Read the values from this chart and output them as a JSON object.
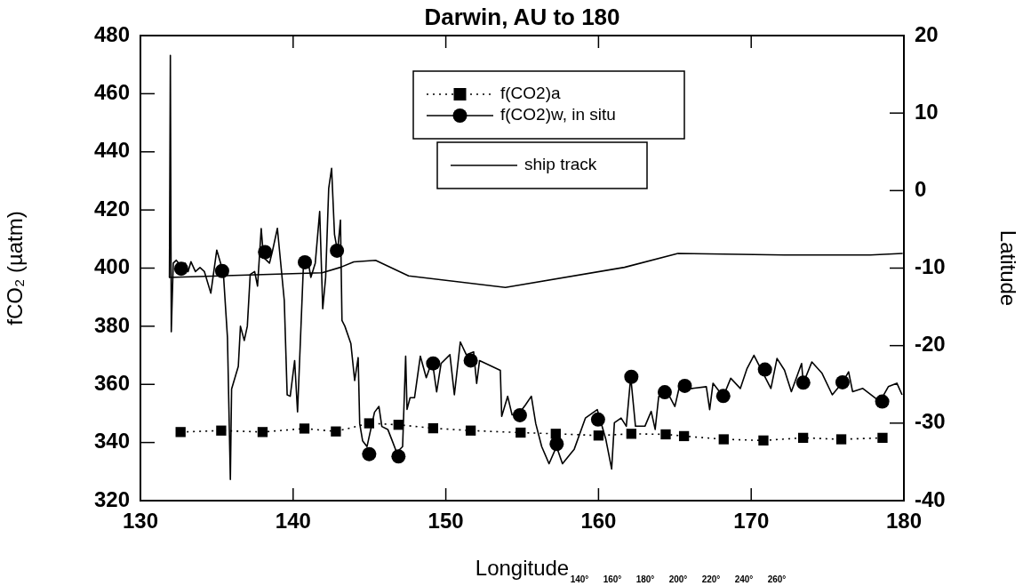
{
  "chart_data": {
    "type": "line",
    "title": "Darwin, AU to 180",
    "xlabel": "Longitude",
    "ylabel": "fCO₂ (µatm)",
    "y2label": "Latitude",
    "xlim": [
      130,
      180
    ],
    "xticks": [
      130,
      140,
      150,
      160,
      170,
      180
    ],
    "ylim": [
      320,
      480
    ],
    "yticks": [
      320,
      340,
      360,
      380,
      400,
      420,
      440,
      460,
      480
    ],
    "y2lim": [
      -40,
      20
    ],
    "y2ticks": [
      -40,
      -30,
      -20,
      -10,
      0,
      10,
      20
    ],
    "legend": "top",
    "annotations": [
      "140°",
      "160°",
      "180°",
      "200°",
      "220°",
      "240°",
      "260°"
    ],
    "series": [
      {
        "name": "f(CO2)a",
        "type": "line",
        "color": "#000000",
        "marker": "square",
        "line_style": "dotted",
        "x": [
          132.63,
          135.29,
          138.0,
          140.74,
          142.8,
          144.98,
          146.9,
          149.17,
          151.63,
          154.9,
          157.2,
          160.0,
          162.15,
          164.4,
          165.6,
          168.2,
          170.8,
          173.4,
          175.9,
          178.6
        ],
        "values": [
          343.6,
          344.1,
          343.6,
          344.8,
          343.8,
          346.6,
          346.1,
          344.9,
          344.1,
          343.4,
          343.0,
          342.4,
          343.0,
          342.8,
          342.2,
          341.1,
          340.7,
          341.6,
          341.1,
          341.6
        ]
      },
      {
        "type": "line",
        "color": "#000000",
        "marker": "none",
        "line_style": "solid",
        "x": [
          131.9,
          131.96,
          132.02,
          132.15,
          132.35,
          132.64,
          132.93,
          133.12,
          133.31,
          133.6,
          133.9,
          134.19,
          134.61,
          135.0,
          135.25,
          135.45,
          135.7,
          135.89,
          135.97,
          136.41,
          136.55,
          136.8,
          137.0,
          137.19,
          137.48,
          137.67,
          137.91,
          138.06,
          138.45,
          138.64,
          138.97,
          139.42,
          139.61,
          139.81,
          140.1,
          140.29,
          140.68,
          140.97,
          141.16,
          141.45,
          141.74,
          141.94,
          142.13,
          142.33,
          142.52,
          142.71,
          142.91,
          143.1,
          143.2,
          143.39,
          143.78,
          144.03,
          144.26,
          144.36,
          144.55,
          144.84,
          145.33,
          145.62,
          145.81,
          146.2,
          146.49,
          146.78,
          147.17,
          147.37,
          147.46,
          147.66,
          147.95,
          148.33,
          148.72,
          149.11,
          149.4,
          149.69,
          150.27,
          150.56,
          150.95,
          151.34,
          151.82,
          152.02,
          152.21,
          153.57,
          153.66,
          154.05,
          154.34,
          154.73,
          155.21,
          155.6,
          155.89,
          156.28,
          156.76,
          157.25,
          157.64,
          158.41,
          159.14,
          159.92,
          160.48,
          160.86,
          161.04,
          161.48,
          161.82,
          162.11,
          162.42,
          163.04,
          163.45,
          163.71,
          163.94,
          164.38,
          165.0,
          165.27,
          166.16,
          167.06,
          167.28,
          167.5,
          168.17,
          168.66,
          169.29,
          169.73,
          170.18,
          170.62,
          171.29,
          171.69,
          172.18,
          172.63,
          173.3,
          173.41,
          173.97,
          174.64,
          175.31,
          175.97,
          176.38,
          176.64,
          177.31,
          178.43,
          178.98,
          179.54,
          179.88
        ],
        "values": [
          396.8,
          473.2,
          378.1,
          401.7,
          402.7,
          400.7,
          401.7,
          398.8,
          402.2,
          398.8,
          400.2,
          398.8,
          391.4,
          406.2,
          401.7,
          396.8,
          376.1,
          327.3,
          358.4,
          366.2,
          380.0,
          375.1,
          380.0,
          397.8,
          398.8,
          393.8,
          413.6,
          403.7,
          401.7,
          405.7,
          413.7,
          388.9,
          356.4,
          355.9,
          368.2,
          350.5,
          401.7,
          402.7,
          396.8,
          401.7,
          419.5,
          386.0,
          396.8,
          427.4,
          434.3,
          411.6,
          405.7,
          416.5,
          382.0,
          380.0,
          374.1,
          361.3,
          369.2,
          346.5,
          340.6,
          338.6,
          350.4,
          352.4,
          345.5,
          344.5,
          340.6,
          336.6,
          338.6,
          369.7,
          351.4,
          355.4,
          355.4,
          369.7,
          362.3,
          368.2,
          357.4,
          367.2,
          370.2,
          356.4,
          374.6,
          370.2,
          371.2,
          360.3,
          368.2,
          364.8,
          349.0,
          355.9,
          349.5,
          349.5,
          352.9,
          355.9,
          346.5,
          338.6,
          332.7,
          338.6,
          332.7,
          337.7,
          348.4,
          351.3,
          341.1,
          330.9,
          346.8,
          348.4,
          345.6,
          362.6,
          345.6,
          345.6,
          350.7,
          344.5,
          355.8,
          358.6,
          352.4,
          358.6,
          358.6,
          359.2,
          351.3,
          360.4,
          355.8,
          362.1,
          358.6,
          365.5,
          370.0,
          365.5,
          358.6,
          368.9,
          364.9,
          357.5,
          367.2,
          360.4,
          367.7,
          363.8,
          356.4,
          360.6,
          364.3,
          357.5,
          358.6,
          354.1,
          359.2,
          360.4,
          356.4
        ]
      },
      {
        "name": "f(CO2)w, in situ",
        "type": "scatter",
        "color": "#000000",
        "marker": "circle",
        "x": [
          132.67,
          135.35,
          138.16,
          140.77,
          142.87,
          144.98,
          146.9,
          149.17,
          151.63,
          154.85,
          157.26,
          159.97,
          162.15,
          164.34,
          165.65,
          168.17,
          170.9,
          173.41,
          175.98,
          178.58
        ],
        "values": [
          399.8,
          399.0,
          405.5,
          402.0,
          406.0,
          336.0,
          335.2,
          367.2,
          368.2,
          349.4,
          339.5,
          347.9,
          362.6,
          357.3,
          359.5,
          356.0,
          365.1,
          360.6,
          360.7,
          354.1
        ]
      },
      {
        "name": "ship track",
        "type": "line",
        "axis": "y2",
        "color": "#000000",
        "marker": "none",
        "line_style": "solid",
        "x": [
          131.86,
          141.9,
          143.1,
          143.97,
          145.4,
          147.56,
          153.9,
          161.7,
          165.2,
          172.17,
          177.8,
          179.92
        ],
        "values": [
          -11.2,
          -10.6,
          -9.9,
          -9.2,
          -9.0,
          -11.0,
          -12.5,
          -9.9,
          -8.1,
          -8.3,
          -8.3,
          -8.1
        ]
      }
    ]
  }
}
